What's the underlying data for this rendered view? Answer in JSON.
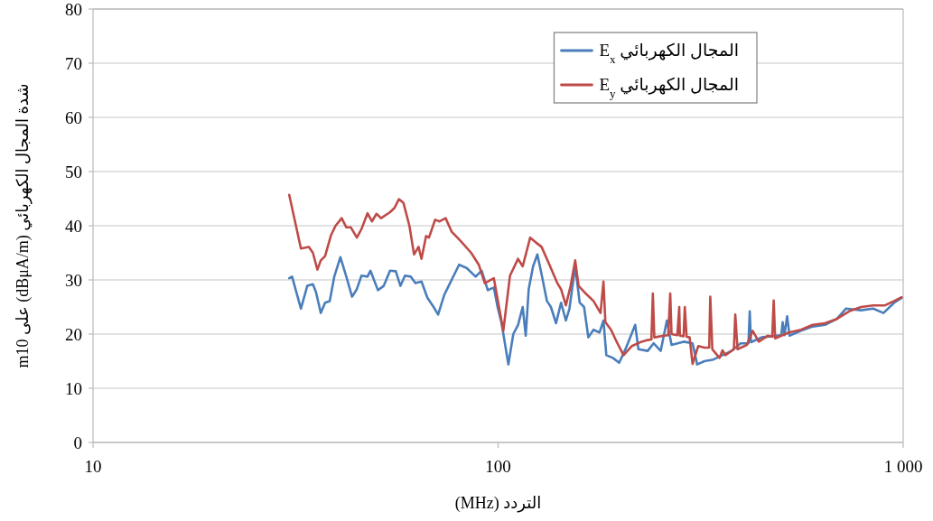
{
  "chart_data": {
    "type": "line",
    "xlabel": "التردد (MHz)",
    "ylabel": "شدة المجال الكهربائي (dBμA/m) على m10",
    "xlim": [
      10,
      1000
    ],
    "ylim": [
      0,
      80
    ],
    "xticks": [
      10,
      100,
      {
        "value": 1000,
        "label": "1 000"
      }
    ],
    "yticks": [
      0,
      10,
      20,
      30,
      40,
      50,
      60,
      70,
      80
    ],
    "log": "x",
    "grid": "y",
    "legend": "top right",
    "series": [
      {
        "name": "المجال الكهربائي E$_{x}$",
        "color": "#4a7ebb",
        "x": [
          30.5,
          31.0,
          32.6,
          33.8,
          34.9,
          35.5,
          36.5,
          37.4,
          38.4,
          39.4,
          40.8,
          42.2,
          43.6,
          44.8,
          46.0,
          47.6,
          48.4,
          50.5,
          52.2,
          54.1,
          55.9,
          57.4,
          58.9,
          60.9,
          62.5,
          64.7,
          66.9,
          69.3,
          71.1,
          73.6,
          75.5,
          80.1,
          83.6,
          88.0,
          91.1,
          94.3,
          97.6,
          99.7,
          102,
          106,
          109,
          112,
          115,
          117,
          119,
          122,
          125,
          128,
          132,
          135,
          139,
          143,
          147,
          150,
          155,
          159,
          163,
          167,
          172,
          178,
          182,
          185,
          192,
          199,
          207,
          218,
          222,
          234,
          242,
          252,
          261,
          268,
          287,
          302,
          310,
          323,
          340,
          358,
          377,
          397,
          415,
          418,
          421,
          447,
          500,
          504,
          509,
          517,
          524,
          559,
          598,
          641,
          686,
          722,
          787,
          843,
          894,
          950,
          991
        ],
        "values": [
          30.3,
          30.6,
          24.7,
          28.9,
          29.2,
          27.8,
          23.9,
          25.8,
          26.1,
          30.6,
          34.2,
          30.6,
          26.9,
          28.3,
          30.8,
          30.6,
          31.7,
          28.1,
          28.9,
          31.7,
          31.6,
          28.9,
          30.8,
          30.6,
          29.4,
          29.7,
          26.7,
          25.0,
          23.6,
          27.2,
          28.9,
          32.8,
          32.2,
          30.6,
          31.7,
          28.1,
          28.6,
          25.0,
          22.0,
          14.4,
          20.0,
          21.7,
          25.0,
          19.7,
          28.3,
          32.5,
          34.7,
          31.1,
          26.1,
          25.0,
          22.0,
          25.8,
          22.5,
          24.7,
          32.5,
          25.8,
          25.0,
          19.4,
          20.8,
          20.3,
          22.5,
          16.1,
          15.6,
          14.7,
          17.5,
          21.7,
          17.2,
          16.9,
          18.3,
          16.9,
          22.5,
          18.0,
          18.6,
          18.3,
          14.4,
          15.0,
          15.3,
          16.1,
          16.9,
          18.3,
          18.3,
          24.2,
          18.5,
          19.4,
          19.8,
          22.2,
          19.8,
          23.3,
          19.7,
          20.6,
          21.4,
          21.7,
          22.8,
          24.7,
          24.4,
          24.7,
          23.9,
          25.8,
          26.7
        ]
      },
      {
        "name": "المجال الكهربائي E$_{y}$",
        "color": "#be4b48",
        "x": [
          30.5,
          32.6,
          34.1,
          34.9,
          35.8,
          36.5,
          37.4,
          38.7,
          39.7,
          41.1,
          42.2,
          43.3,
          44.8,
          46.0,
          47.6,
          48.8,
          50.1,
          51.4,
          54.1,
          55.5,
          56.9,
          58.4,
          60.4,
          62.0,
          63.6,
          64.7,
          66.4,
          67.5,
          69.9,
          71.7,
          74.2,
          76.8,
          80.8,
          85.8,
          89.6,
          92.7,
          97.6,
          103,
          107,
          112,
          115,
          120,
          124,
          128,
          133,
          140,
          143,
          147,
          151,
          155,
          158,
          163,
          172,
          179,
          182,
          184,
          190,
          197,
          204,
          214,
          226,
          234,
          239,
          241,
          243,
          257,
          263,
          266,
          268,
          277,
          280,
          281,
          287,
          289,
          292,
          297,
          302,
          312,
          323,
          332,
          334,
          338,
          352,
          358,
          364,
          382,
          385,
          390,
          411,
          425,
          440,
          463,
          475,
          479,
          483,
          522,
          559,
          598,
          641,
          686,
          735,
          787,
          843,
          902,
          950,
          991
        ],
        "values": [
          45.7,
          35.8,
          36.1,
          35.0,
          31.9,
          33.6,
          34.4,
          38.3,
          40.0,
          41.4,
          39.7,
          39.7,
          37.8,
          39.4,
          42.3,
          40.8,
          42.2,
          41.4,
          42.5,
          43.3,
          44.9,
          44.2,
          40.0,
          34.7,
          36.1,
          33.9,
          38.1,
          37.8,
          41.1,
          40.8,
          41.4,
          38.9,
          37.2,
          35.0,
          32.8,
          29.4,
          30.3,
          20.6,
          30.8,
          33.9,
          32.5,
          37.8,
          36.9,
          36.1,
          33.3,
          29.4,
          28.3,
          25.3,
          28.9,
          33.6,
          28.9,
          27.8,
          26.1,
          23.9,
          29.7,
          22.2,
          20.8,
          18.3,
          16.1,
          17.8,
          18.6,
          18.9,
          19.0,
          27.5,
          19.4,
          19.7,
          19.8,
          27.5,
          20.0,
          19.8,
          25.0,
          19.7,
          19.6,
          25.0,
          19.5,
          19.4,
          14.5,
          17.8,
          17.5,
          17.5,
          26.9,
          17.2,
          15.6,
          17.0,
          16.1,
          17.2,
          23.6,
          17.2,
          18.0,
          20.6,
          18.6,
          19.7,
          19.5,
          26.2,
          19.2,
          20.3,
          20.8,
          21.7,
          22.0,
          22.8,
          24.2,
          25.0,
          25.3,
          25.3,
          26.1,
          26.8
        ]
      }
    ]
  }
}
